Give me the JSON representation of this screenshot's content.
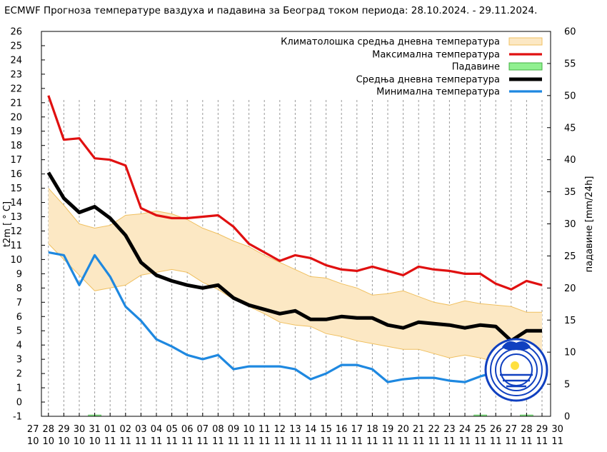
{
  "title": "ECMWF Прогноза температуре ваздуха и падавина за Београд током периода: 28.10.2024. - 29.11.2024.",
  "chart_data": {
    "type": "line",
    "title": "ECMWF Прогноза температуре ваздуха и падавина за Београд током периода: 28.10.2024. - 29.11.2024.",
    "ylabel": "t2m [ ° C]",
    "y2label": "падавине [mm/24h]",
    "ylim": [
      -1,
      26
    ],
    "y2lim": [
      0,
      60
    ],
    "grid": "vertical dashed",
    "legend_position": "top-right",
    "x_ticks": [
      {
        "day": "27",
        "month": "10"
      },
      {
        "day": "28",
        "month": "10"
      },
      {
        "day": "29",
        "month": "10"
      },
      {
        "day": "30",
        "month": "10"
      },
      {
        "day": "31",
        "month": "10"
      },
      {
        "day": "01",
        "month": "11"
      },
      {
        "day": "02",
        "month": "11"
      },
      {
        "day": "03",
        "month": "11"
      },
      {
        "day": "04",
        "month": "11"
      },
      {
        "day": "05",
        "month": "11"
      },
      {
        "day": "06",
        "month": "11"
      },
      {
        "day": "07",
        "month": "11"
      },
      {
        "day": "08",
        "month": "11"
      },
      {
        "day": "09",
        "month": "11"
      },
      {
        "day": "10",
        "month": "11"
      },
      {
        "day": "11",
        "month": "11"
      },
      {
        "day": "12",
        "month": "11"
      },
      {
        "day": "13",
        "month": "11"
      },
      {
        "day": "14",
        "month": "11"
      },
      {
        "day": "15",
        "month": "11"
      },
      {
        "day": "16",
        "month": "11"
      },
      {
        "day": "17",
        "month": "11"
      },
      {
        "day": "18",
        "month": "11"
      },
      {
        "day": "19",
        "month": "11"
      },
      {
        "day": "20",
        "month": "11"
      },
      {
        "day": "21",
        "month": "11"
      },
      {
        "day": "22",
        "month": "11"
      },
      {
        "day": "23",
        "month": "11"
      },
      {
        "day": "24",
        "month": "11"
      },
      {
        "day": "25",
        "month": "11"
      },
      {
        "day": "26",
        "month": "11"
      },
      {
        "day": "27",
        "month": "11"
      },
      {
        "day": "28",
        "month": "11"
      },
      {
        "day": "29",
        "month": "11"
      },
      {
        "day": "30",
        "month": "11"
      }
    ],
    "x_days": [
      "28.10",
      "29.10",
      "30.10",
      "31.10",
      "01.11",
      "02.11",
      "03.11",
      "04.11",
      "05.11",
      "06.11",
      "07.11",
      "08.11",
      "09.11",
      "10.11",
      "11.11",
      "12.11",
      "13.11",
      "14.11",
      "15.11",
      "16.11",
      "17.11",
      "18.11",
      "19.11",
      "20.11",
      "21.11",
      "22.11",
      "23.11",
      "24.11",
      "25.11",
      "26.11",
      "27.11",
      "28.11",
      "29.11"
    ],
    "series": [
      {
        "name": "Климатолошка средња дневна температура",
        "kind": "band",
        "color": "#fce8c4",
        "edge_color": "#f0c060",
        "x": [
          0,
          1,
          2,
          3,
          4,
          5,
          6,
          7,
          8,
          9,
          10,
          11,
          12,
          13,
          14,
          15,
          16,
          17,
          18,
          19,
          20,
          21,
          22,
          23,
          24,
          25,
          26,
          27,
          28,
          29,
          30,
          31,
          32
        ],
        "upper": [
          15,
          13.8,
          12.5,
          12.2,
          12.4,
          13.1,
          13.2,
          13.4,
          13.2,
          12.8,
          12.2,
          11.8,
          11.3,
          10.9,
          10.3,
          9.8,
          9.3,
          8.8,
          8.7,
          8.3,
          8,
          7.5,
          7.6,
          7.8,
          7.4,
          7,
          6.8,
          7.1,
          6.9,
          6.8,
          6.7,
          6.3,
          6.3
        ],
        "lower": [
          11.1,
          10,
          8.9,
          7.8,
          8,
          8.2,
          8.9,
          9.1,
          9.3,
          9.1,
          8.4,
          7.9,
          7.2,
          6.7,
          6.2,
          5.6,
          5.4,
          5.3,
          4.8,
          4.6,
          4.3,
          4.1,
          3.9,
          3.7,
          3.7,
          3.4,
          3.1,
          3.3,
          3.1,
          2.8,
          2.6,
          2.5,
          2.5
        ]
      },
      {
        "name": "Максимална температура",
        "kind": "line",
        "color": "#e01010",
        "x": [
          0,
          1,
          2,
          3,
          4,
          5,
          6,
          7,
          8,
          9,
          10,
          11,
          12,
          13,
          14,
          15,
          16,
          17,
          18,
          19,
          20,
          21,
          22,
          23,
          24,
          25,
          26,
          27,
          28,
          29,
          30,
          31,
          32
        ],
        "values": [
          21.5,
          18.4,
          18.5,
          17.1,
          17,
          16.6,
          13.6,
          13.1,
          12.9,
          12.9,
          13,
          13.1,
          12.3,
          11.1,
          10.5,
          9.9,
          10.3,
          10.1,
          9.6,
          9.3,
          9.2,
          9.5,
          9.2,
          8.9,
          9.5,
          9.3,
          9.2,
          9,
          9,
          8.3,
          7.9,
          8.5,
          8.2
        ]
      },
      {
        "name": "Падавине",
        "kind": "bar",
        "axis": "y2",
        "color": "#90f090",
        "x": [
          0,
          1,
          2,
          3,
          4,
          5,
          6,
          7,
          8,
          9,
          10,
          11,
          12,
          13,
          14,
          15,
          16,
          17,
          18,
          19,
          20,
          21,
          22,
          23,
          24,
          25,
          26,
          27,
          28,
          29,
          30,
          31,
          32
        ],
        "values": [
          0,
          0,
          0,
          0.2,
          0,
          0,
          0,
          0,
          0,
          0,
          0,
          0,
          0,
          0,
          0,
          0,
          0,
          0,
          0,
          0,
          0,
          0,
          0,
          0,
          0,
          0,
          0,
          0,
          0.2,
          0,
          0,
          0.2,
          0
        ]
      },
      {
        "name": "Средња дневна температура",
        "kind": "line",
        "color": "#000000",
        "x": [
          0,
          1,
          2,
          3,
          4,
          5,
          6,
          7,
          8,
          9,
          10,
          11,
          12,
          13,
          14,
          15,
          16,
          17,
          18,
          19,
          20,
          21,
          22,
          23,
          24,
          25,
          26,
          27,
          28,
          29,
          30,
          31,
          32
        ],
        "values": [
          16.1,
          14.3,
          13.3,
          13.7,
          12.9,
          11.7,
          9.8,
          8.9,
          8.5,
          8.2,
          8,
          8.2,
          7.3,
          6.8,
          6.5,
          6.2,
          6.4,
          5.8,
          5.8,
          6,
          5.9,
          5.9,
          5.4,
          5.2,
          5.6,
          5.5,
          5.4,
          5.2,
          5.4,
          5.3,
          4.3,
          5,
          5
        ]
      },
      {
        "name": "Минимална температура",
        "kind": "line",
        "color": "#1e88e0",
        "x": [
          0,
          1,
          2,
          3,
          4,
          5,
          6,
          7,
          8,
          9,
          10,
          11,
          12,
          13,
          14,
          15,
          16,
          17,
          18,
          19,
          20,
          21,
          22,
          23,
          24,
          25,
          26,
          27,
          28,
          29,
          30,
          31,
          32
        ],
        "values": [
          10.5,
          10.3,
          8.2,
          10.3,
          8.8,
          6.7,
          5.7,
          4.4,
          3.9,
          3.3,
          3,
          3.3,
          2.3,
          2.5,
          2.5,
          2.5,
          2.3,
          1.6,
          2,
          2.6,
          2.6,
          2.3,
          1.4,
          1.6,
          1.7,
          1.7,
          1.5,
          1.4,
          1.8,
          2.1,
          2.2,
          2.3,
          2.3
        ]
      }
    ]
  },
  "logo": {
    "name": "rhmz-logo",
    "color": "#1040c0"
  }
}
